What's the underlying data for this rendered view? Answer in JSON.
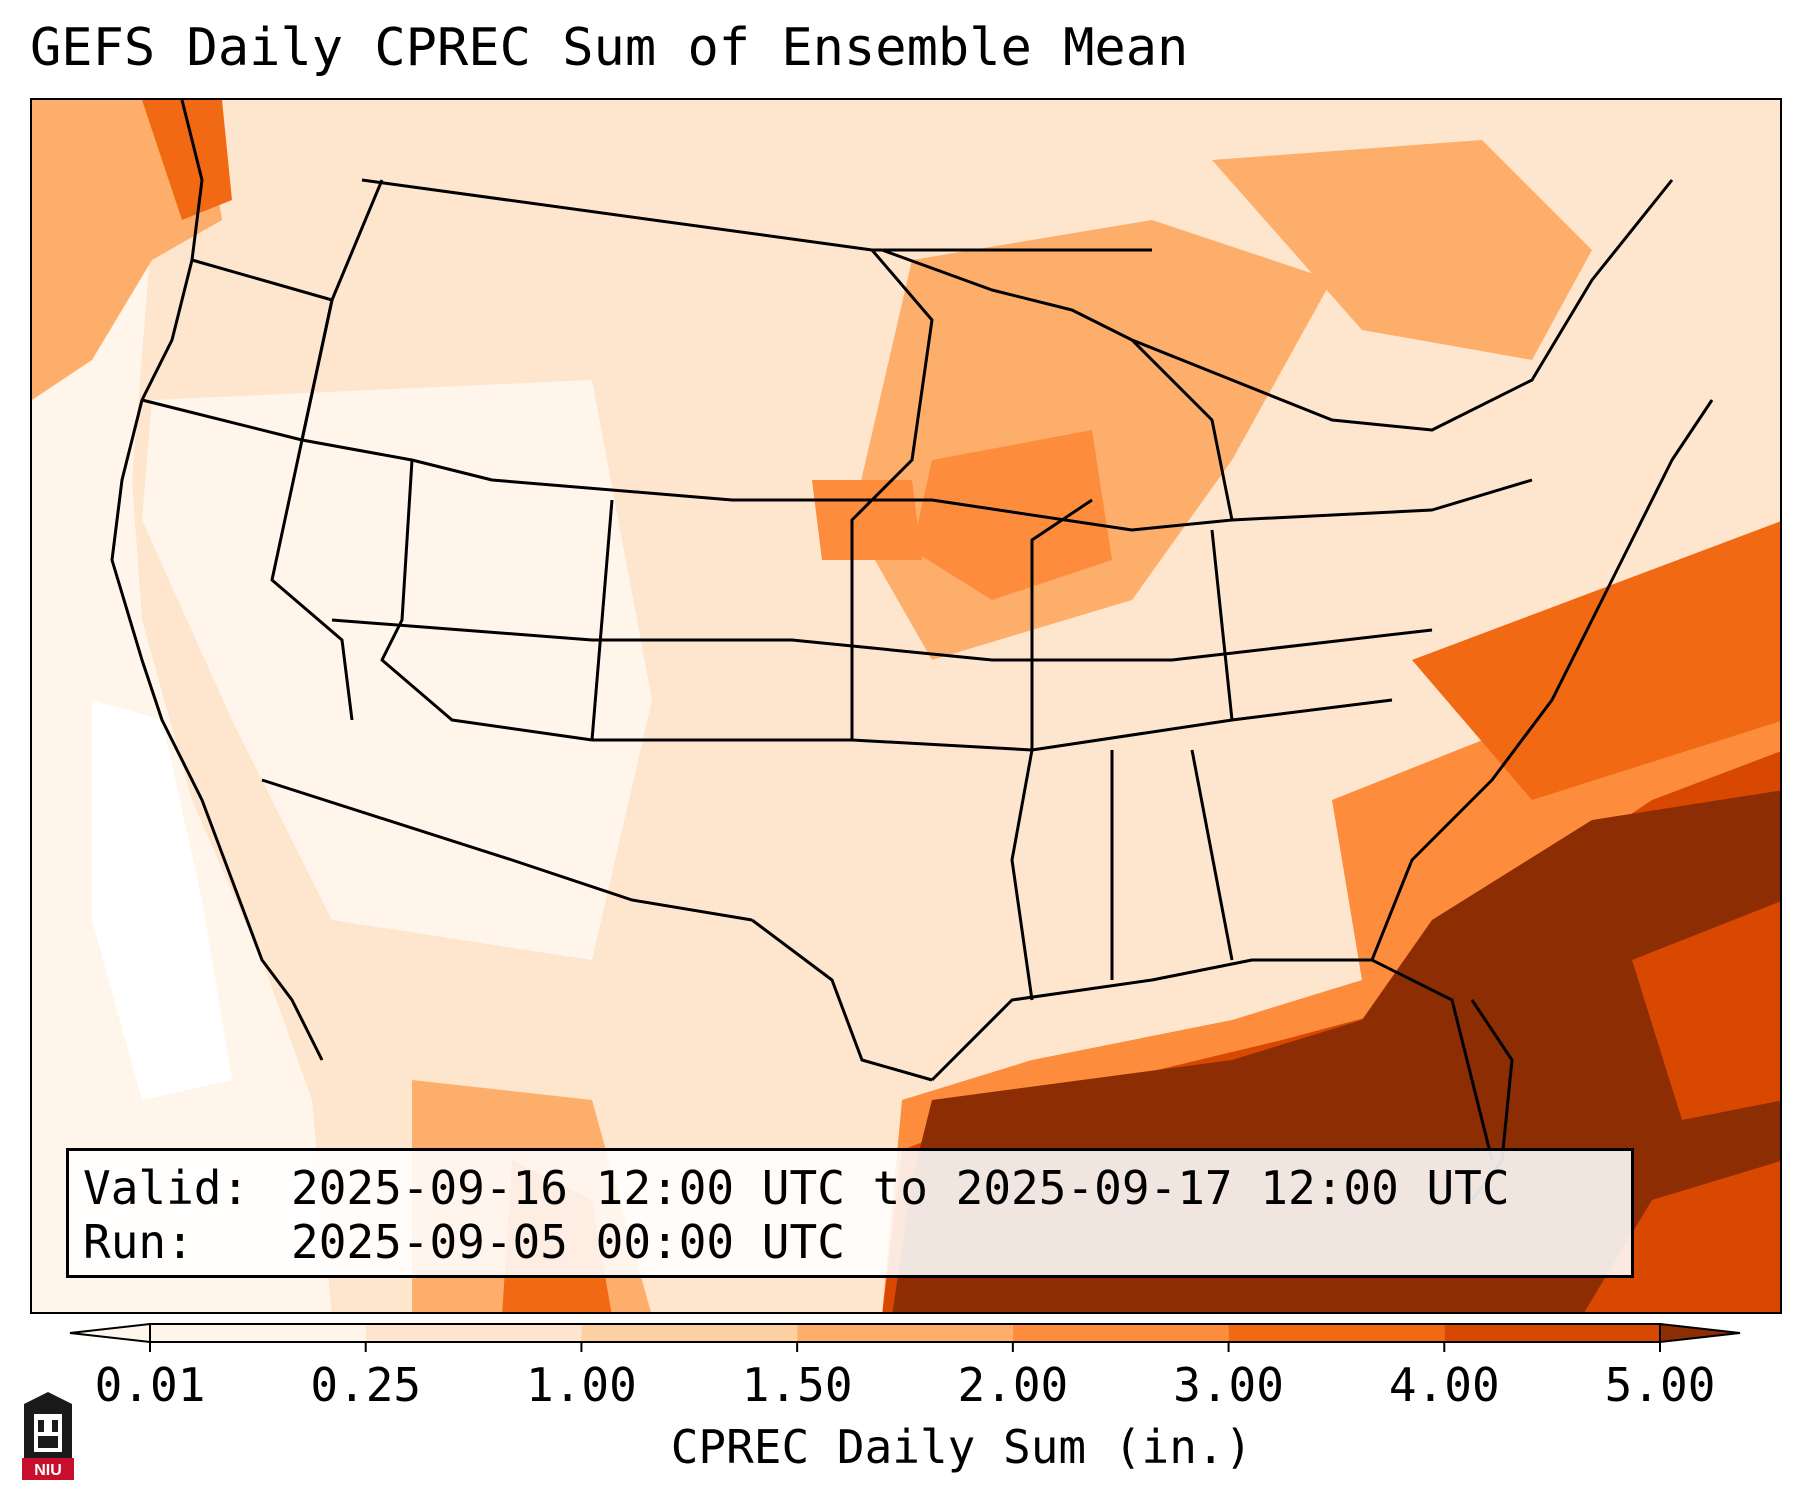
{
  "title": "GEFS Daily CPREC Sum of Ensemble Mean",
  "info": {
    "valid_label": "Valid:",
    "valid_value": "2025-09-16 12:00 UTC to 2025-09-17 12:00 UTC",
    "run_label": "Run:",
    "run_value": "2025-09-05 00:00 UTC"
  },
  "colorbar": {
    "label": "CPREC Daily Sum (in.)",
    "ticks": [
      "0.01",
      "0.25",
      "1.00",
      "1.50",
      "2.00",
      "3.00",
      "4.00",
      "5.00"
    ],
    "colors": [
      "#fff5eb",
      "#fee6ce",
      "#fdd0a2",
      "#fdae6b",
      "#fd8d3c",
      "#f16913",
      "#d94801",
      "#8c2d04"
    ],
    "extend": "both"
  },
  "logo": {
    "text": "NIU",
    "color": "#c8102e"
  },
  "colors": {
    "outline": "#000000",
    "light": "#fff5eb",
    "pale": "#fee6ce",
    "tan": "#fdd0a2",
    "orange_light": "#fdae6b",
    "orange": "#fd8d3c",
    "orange_dark": "#f16913",
    "deep": "#d94801",
    "brown": "#8c2d04"
  }
}
